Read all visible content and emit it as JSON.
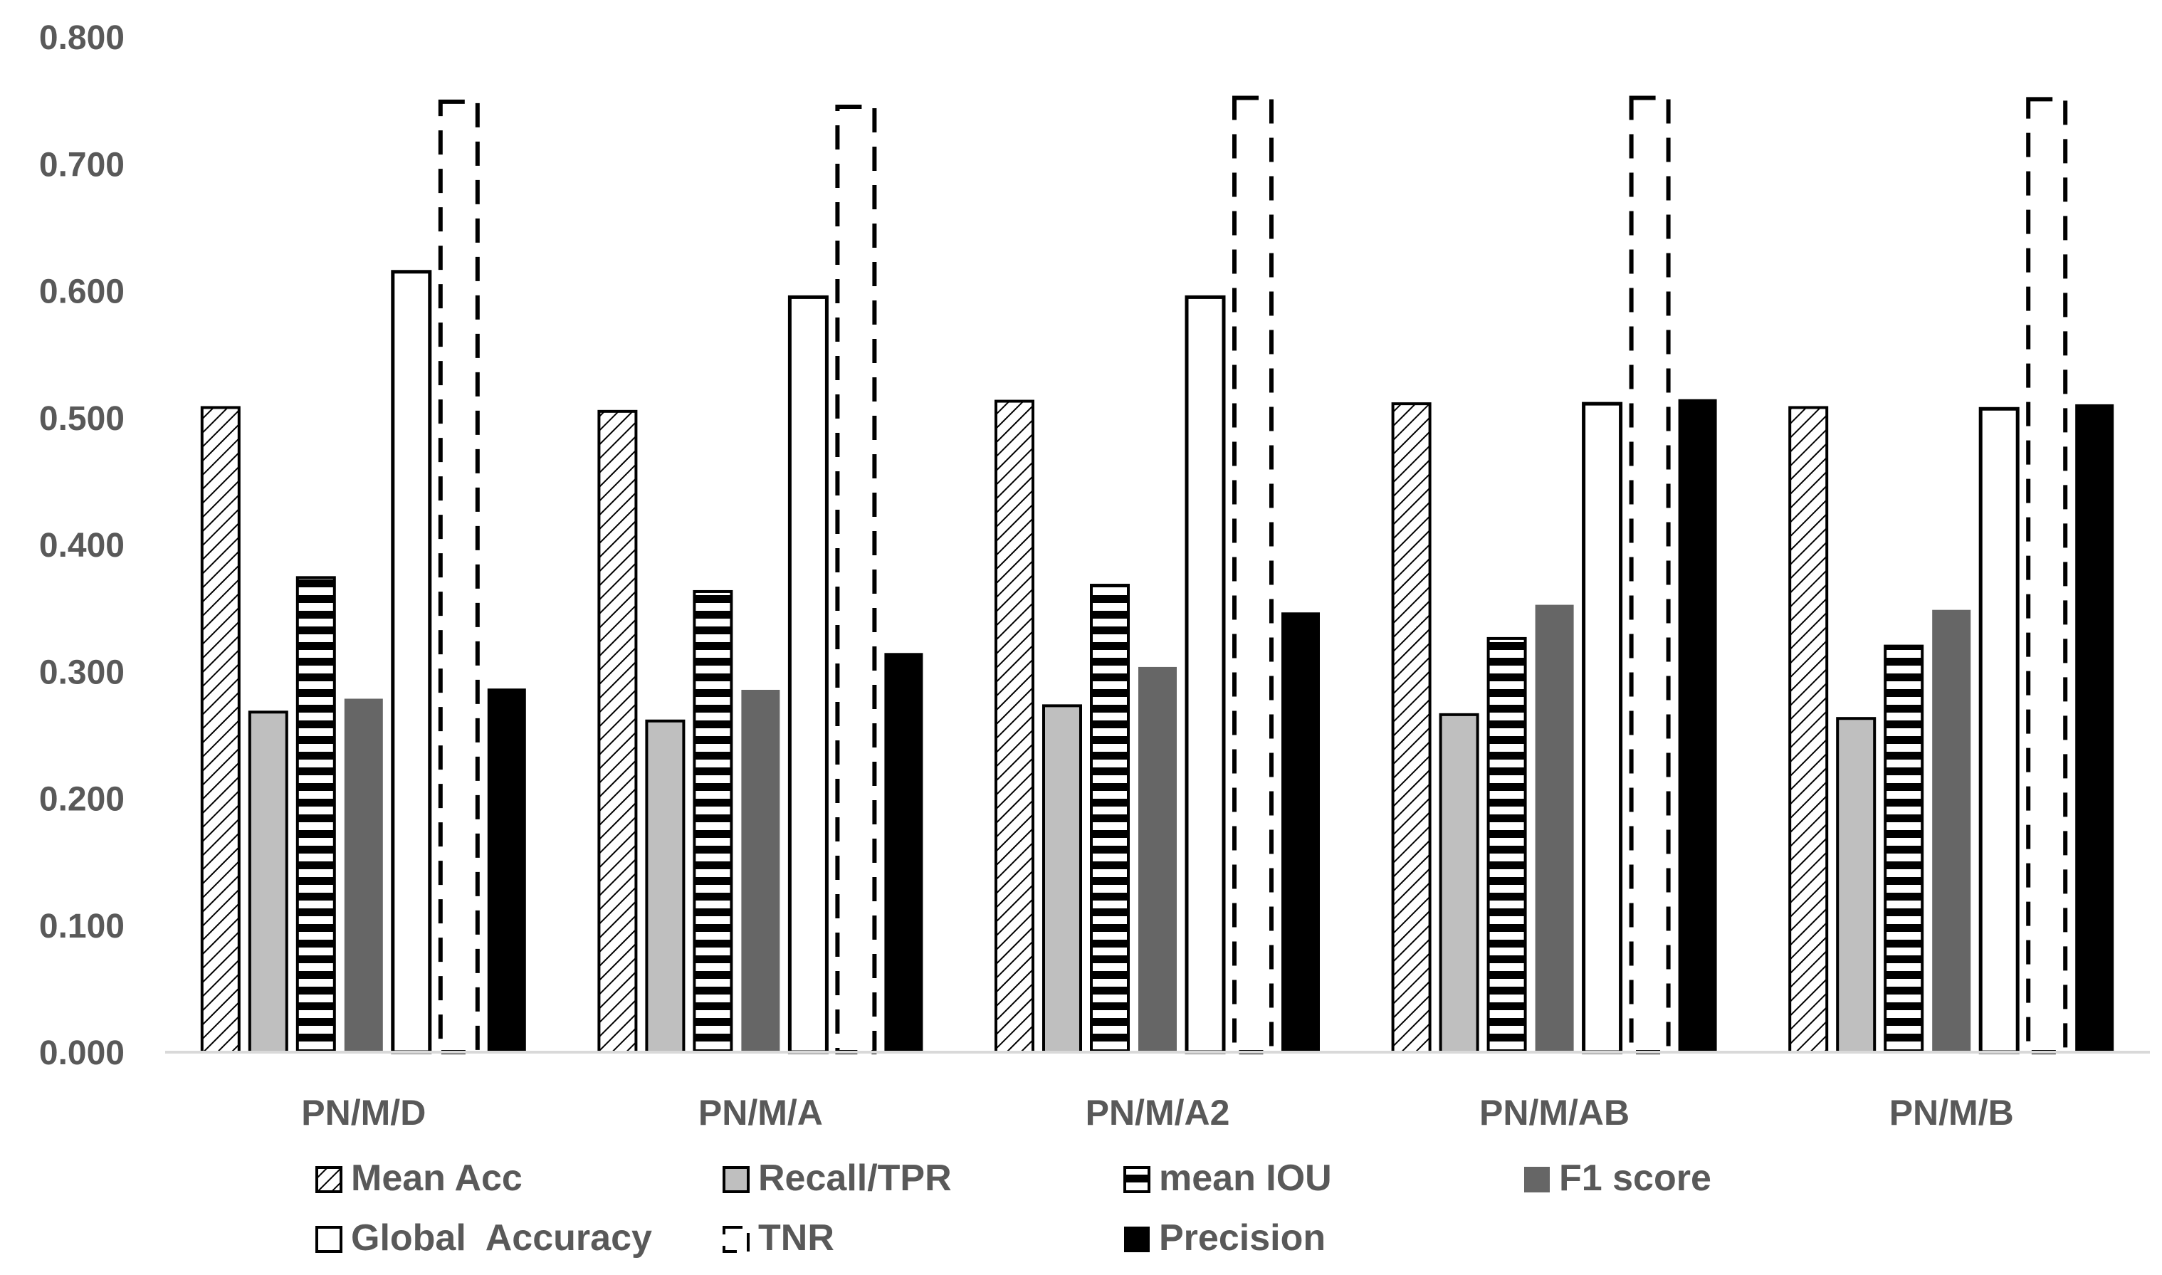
{
  "chart_data": {
    "type": "bar",
    "title": "",
    "xlabel": "",
    "ylabel": "",
    "ylim": [
      0,
      0.8
    ],
    "yticks": [
      "0.000",
      "0.100",
      "0.200",
      "0.300",
      "0.400",
      "0.500",
      "0.600",
      "0.700",
      "0.800"
    ],
    "categories": [
      "PN/M/D",
      "PN/M/A",
      "PN/M/A2",
      "PN/M/AB",
      "PN/M/B"
    ],
    "series": [
      {
        "name": "Mean Acc",
        "pattern": "diagonal-hatch",
        "values": [
          0.508,
          0.505,
          0.513,
          0.511,
          0.508
        ]
      },
      {
        "name": "Recall/TPR",
        "pattern": "solid-light-gray",
        "values": [
          0.268,
          0.261,
          0.273,
          0.266,
          0.263
        ]
      },
      {
        "name": "mean IOU",
        "pattern": "horizontal-stripes",
        "values": [
          0.374,
          0.363,
          0.368,
          0.326,
          0.32
        ]
      },
      {
        "name": "F1 score",
        "pattern": "solid-dark-gray",
        "values": [
          0.278,
          0.285,
          0.303,
          0.352,
          0.348
        ]
      },
      {
        "name": "Global  Accuracy",
        "pattern": "white-outline",
        "values": [
          0.615,
          0.595,
          0.595,
          0.511,
          0.507
        ]
      },
      {
        "name": "TNR",
        "pattern": "dashed-outline",
        "values": [
          0.749,
          0.745,
          0.752,
          0.752,
          0.751
        ]
      },
      {
        "name": "Precision",
        "pattern": "solid-black",
        "values": [
          0.286,
          0.314,
          0.346,
          0.514,
          0.51
        ]
      }
    ],
    "legend_position": "bottom",
    "colors": {
      "light_gray": "#bfbfbf",
      "dark_gray": "#666666",
      "black": "#000000",
      "axis": "#d9d9d9",
      "text": "#595959"
    }
  }
}
